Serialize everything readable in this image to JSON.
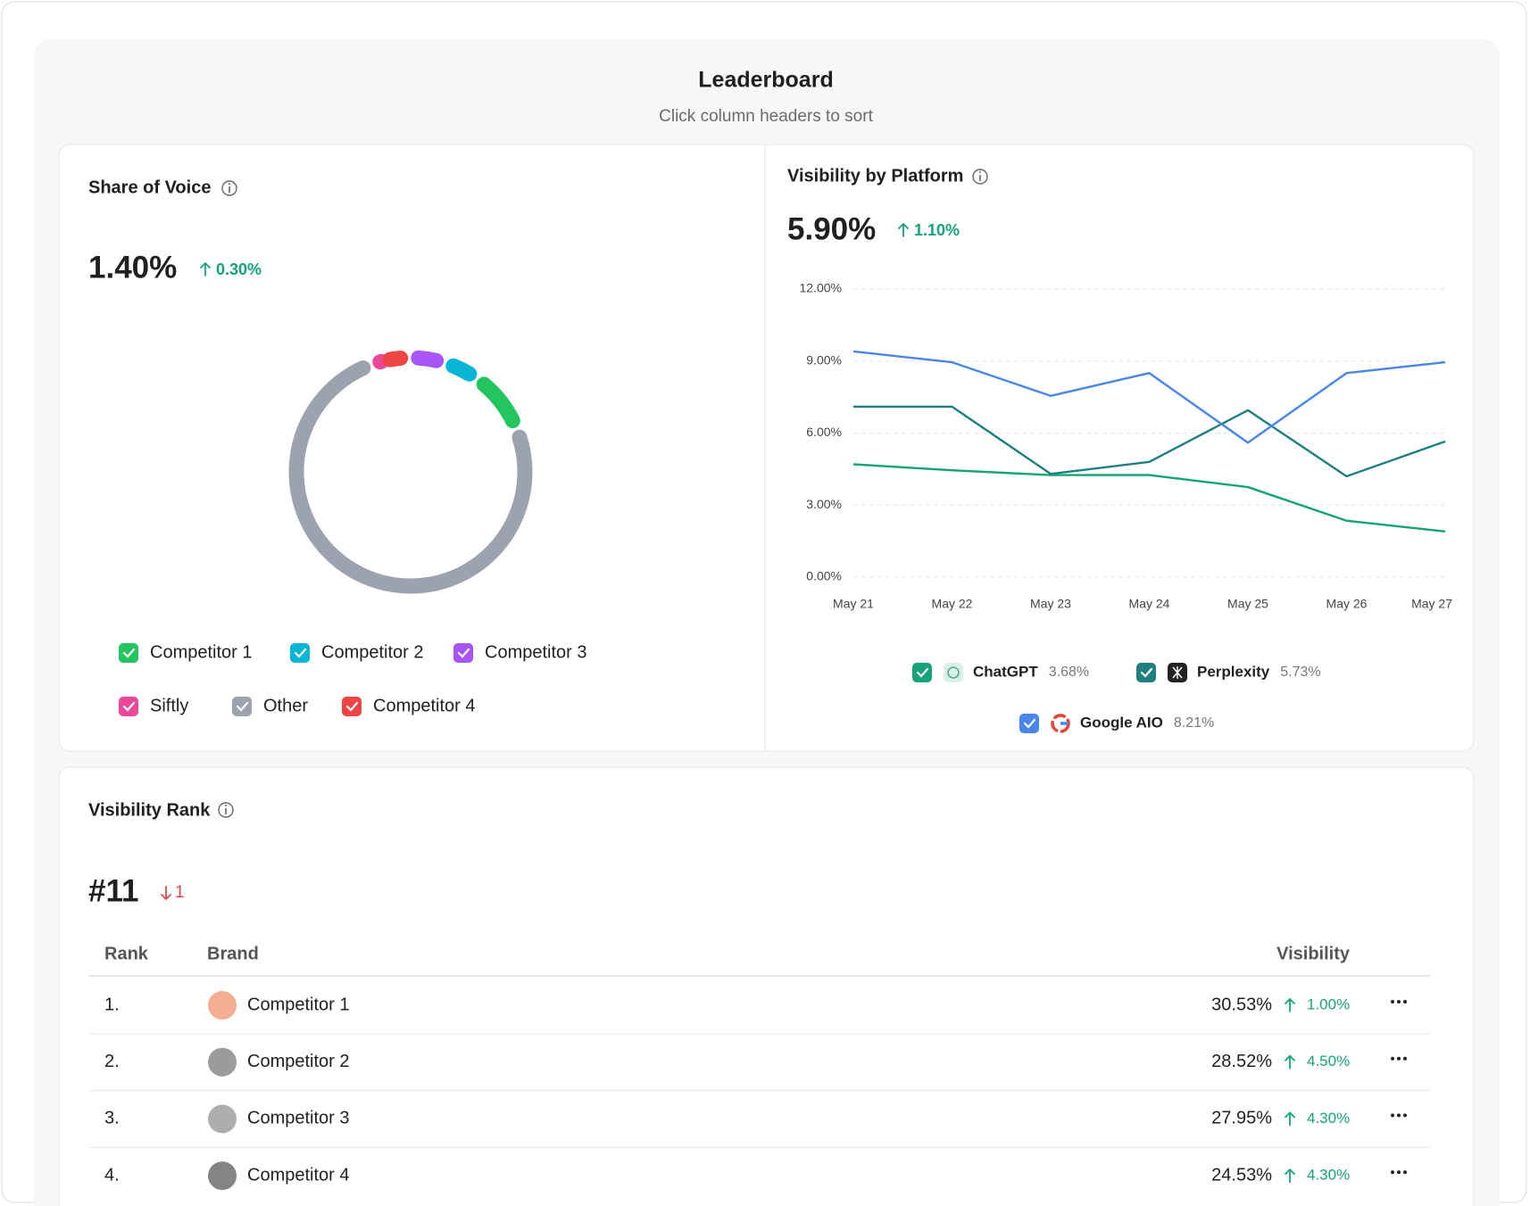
{
  "header": {
    "title": "Leaderboard",
    "subtitle": "Click column headers to sort"
  },
  "share_of_voice": {
    "title": "Share of Voice",
    "value": "1.40%",
    "change": "0.30%",
    "change_direction": "up"
  },
  "visibility_by_platform": {
    "title": "Visibility by Platform",
    "value": "5.90%",
    "change": "1.10%",
    "change_direction": "up"
  },
  "chart_data": [
    {
      "type": "donut",
      "categories": [
        "Competitor 1",
        "Competitor 2",
        "Competitor 3",
        "Siftly",
        "Other",
        "Competitor 4"
      ],
      "values": [
        9,
        5,
        5,
        1.4,
        75.6,
        4
      ],
      "colors": [
        "#22c55e",
        "#06b6d4",
        "#a855f7",
        "#ec4899",
        "#9ca3af",
        "#ef4444"
      ]
    },
    {
      "type": "line",
      "categories": [
        "May 21",
        "May 22",
        "May 23",
        "May 24",
        "May 25",
        "May 26",
        "May 27"
      ],
      "ylim": [
        0,
        12
      ],
      "yticks": [
        {
          "value": 0,
          "label": "0.00%"
        },
        {
          "value": 3,
          "label": "3.00%"
        },
        {
          "value": 6,
          "label": "6.00%"
        },
        {
          "value": 9,
          "label": "9.00%"
        },
        {
          "value": 12,
          "label": "12.00%"
        }
      ],
      "grid": true,
      "series": [
        {
          "name": "ChatGPT",
          "share": "3.68%",
          "color": "#16a37a",
          "values": [
            4.7,
            4.45,
            4.25,
            4.25,
            3.75,
            2.35,
            1.9
          ]
        },
        {
          "name": "Perplexity",
          "share": "5.73%",
          "color": "#1f7f80",
          "values": [
            7.1,
            7.1,
            4.3,
            4.8,
            6.95,
            4.2,
            5.65
          ]
        },
        {
          "name": "Google AIO",
          "share": "8.21%",
          "color": "#4a86e8",
          "values": [
            9.4,
            8.95,
            7.55,
            8.5,
            5.6,
            8.5,
            8.95
          ]
        }
      ]
    }
  ],
  "visibility_rank": {
    "title": "Visibility Rank",
    "value": "#11",
    "change": "1",
    "change_direction": "down",
    "table": {
      "columns": [
        "Rank",
        "Brand",
        "Visibility"
      ],
      "rows": [
        [
          "1.",
          "Competitor 1",
          "30.53%",
          "1.00%"
        ],
        [
          "2.",
          "Competitor 2",
          "28.52%",
          "4.50%"
        ],
        [
          "3.",
          "Competitor 3",
          "27.95%",
          "4.30%"
        ],
        [
          "4.",
          "Competitor 4",
          "24.53%",
          "4.30%"
        ]
      ]
    }
  }
}
